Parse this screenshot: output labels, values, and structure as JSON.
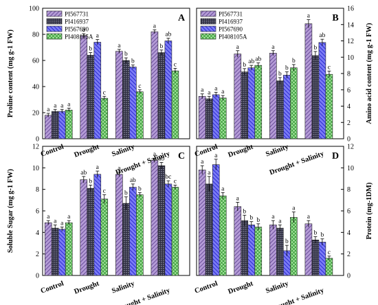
{
  "colors": {
    "PI567731": "#9b7fc4",
    "PI416937": "#3d3d55",
    "PI567690": "#5a5af0",
    "PI408105A": "#7fd07a"
  },
  "chart_data": [
    {
      "type": "bar",
      "panel": "A",
      "ylabel": "Proline content (mg g-1 FW)",
      "ylim": [
        0,
        100
      ],
      "yticks": [
        0,
        20,
        40,
        60,
        80,
        100
      ],
      "y_axis_side": "left",
      "categories": [
        "Control",
        "Drought",
        "Salinity",
        "Drought + Salinity"
      ],
      "legend_order": [
        "PI567731",
        "PI416937",
        "PI567690",
        "PI408105A"
      ],
      "series": [
        {
          "name": "PI567731",
          "values": [
            18,
            79,
            67,
            82
          ],
          "errors": [
            1.5,
            1.5,
            1.5,
            1.5
          ],
          "labels": [
            "a",
            "a",
            "a",
            "a"
          ]
        },
        {
          "name": "PI416937",
          "values": [
            21,
            64,
            60,
            66
          ],
          "errors": [
            1.5,
            2,
            2,
            2
          ],
          "labels": [
            "a",
            "b",
            "b",
            "b"
          ]
        },
        {
          "name": "PI567690",
          "values": [
            21,
            74,
            55,
            75
          ],
          "errors": [
            1.5,
            2,
            1.5,
            2
          ],
          "labels": [
            "a",
            "a",
            "b",
            "ab"
          ]
        },
        {
          "name": "PI408105A",
          "values": [
            22,
            31,
            36,
            52
          ],
          "errors": [
            1.5,
            1.5,
            1.5,
            2
          ],
          "labels": [
            "a",
            "c",
            "c",
            "c"
          ]
        }
      ]
    },
    {
      "type": "bar",
      "panel": "B",
      "ylabel": "Amino acid content (mg g-1 FW)",
      "ylim": [
        0,
        16
      ],
      "yticks": [
        0,
        2,
        4,
        6,
        8,
        10,
        12,
        14,
        16
      ],
      "y_axis_side": "right",
      "categories": [
        "Control",
        "Drought",
        "Salinity",
        "Drought + Salinity"
      ],
      "legend_order": [
        "PI567731",
        "PI416937",
        "PI567690",
        "PI408105A"
      ],
      "series": [
        {
          "name": "PI567731",
          "values": [
            5.2,
            10.4,
            10.5,
            14.1
          ],
          "errors": [
            0.3,
            0.4,
            0.3,
            0.5
          ],
          "labels": [
            "a",
            "a",
            "a",
            "a"
          ]
        },
        {
          "name": "PI416937",
          "values": [
            4.9,
            8.2,
            7.1,
            10.2
          ],
          "errors": [
            0.3,
            0.4,
            0.4,
            0.5
          ],
          "labels": [
            "a",
            "b",
            "b",
            "b"
          ]
        },
        {
          "name": "PI567690",
          "values": [
            5.4,
            8.7,
            7.8,
            11.8
          ],
          "errors": [
            0.3,
            0.3,
            0.4,
            0.4
          ],
          "labels": [
            "a",
            "ab",
            "b",
            "ab"
          ]
        },
        {
          "name": "PI408105A",
          "values": [
            5.0,
            9.0,
            8.7,
            7.9
          ],
          "errors": [
            0.3,
            0.3,
            0.4,
            0.4
          ],
          "labels": [
            "a",
            "ab",
            "b",
            "c"
          ]
        }
      ]
    },
    {
      "type": "bar",
      "panel": "C",
      "ylabel": "Soluble Sugar (mg g-1 FW)",
      "ylim": [
        0,
        12
      ],
      "yticks": [
        0,
        2,
        4,
        6,
        8,
        10,
        12
      ],
      "y_axis_side": "left",
      "categories": [
        "Control",
        "Drought",
        "Salinity",
        "Drought + Salinity"
      ],
      "series": [
        {
          "name": "PI567731",
          "values": [
            4.9,
            8.9,
            9.4,
            10.7
          ],
          "errors": [
            0.2,
            0.3,
            0.2,
            0.2
          ],
          "labels": [
            "a",
            "ab",
            "a",
            "a"
          ]
        },
        {
          "name": "PI416937",
          "values": [
            4.4,
            8.1,
            6.7,
            10.2
          ],
          "errors": [
            0.3,
            0.3,
            0.6,
            0.3
          ],
          "labels": [
            "a",
            "b",
            "b",
            "ab"
          ]
        },
        {
          "name": "PI567690",
          "values": [
            4.3,
            9.4,
            8.2,
            8.5
          ],
          "errors": [
            0.2,
            0.3,
            0.3,
            0.3
          ],
          "labels": [
            "a",
            "a",
            "ab",
            "bc"
          ]
        },
        {
          "name": "PI408105A",
          "values": [
            4.9,
            7.1,
            7.5,
            8.2
          ],
          "errors": [
            0.2,
            0.4,
            0.2,
            0.2
          ],
          "labels": [
            "a",
            "c",
            "b",
            "c"
          ]
        }
      ]
    },
    {
      "type": "bar",
      "panel": "D",
      "ylabel": "Protein (mg-1DM)",
      "ylim": [
        0,
        12
      ],
      "yticks": [
        0,
        2,
        4,
        6,
        8,
        10,
        12
      ],
      "y_axis_side": "right",
      "categories": [
        "Control",
        "Drought",
        "Salinity",
        "Drought + Salinity"
      ],
      "series": [
        {
          "name": "PI567731",
          "values": [
            9.8,
            6.4,
            4.7,
            4.8
          ],
          "errors": [
            0.4,
            0.4,
            0.4,
            0.3
          ],
          "labels": [
            "a",
            "a",
            "a",
            "a"
          ]
        },
        {
          "name": "PI416937",
          "values": [
            8.5,
            5.1,
            4.4,
            3.3
          ],
          "errors": [
            0.7,
            0.5,
            0.3,
            0.3
          ],
          "labels": [
            "a",
            "b",
            "a",
            "b"
          ]
        },
        {
          "name": "PI567690",
          "values": [
            10.3,
            4.7,
            2.3,
            3.1
          ],
          "errors": [
            0.5,
            0.3,
            0.5,
            0.3
          ],
          "labels": [
            "a",
            "b",
            "b",
            "b"
          ]
        },
        {
          "name": "PI408105A",
          "values": [
            7.4,
            4.5,
            5.4,
            1.6
          ],
          "errors": [
            0.3,
            0.3,
            0.5,
            0.2
          ],
          "labels": [
            "a",
            "b",
            "a",
            "c"
          ]
        }
      ]
    }
  ]
}
